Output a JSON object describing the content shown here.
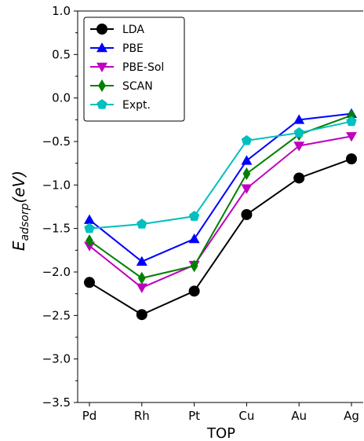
{
  "chart_data": {
    "type": "line",
    "categories": [
      "Pd",
      "Rh",
      "Pt",
      "Cu",
      "Au",
      "Ag"
    ],
    "xlabel": "TOP",
    "ylabel_main": "E",
    "ylabel_sub": "adsorp",
    "ylabel_unit": "(eV)",
    "ylim": [
      -3.5,
      1.0
    ],
    "yticks": [
      1.0,
      0.5,
      0.0,
      -0.5,
      -1.0,
      -1.5,
      -2.0,
      -2.5,
      -3.0,
      -3.5
    ],
    "ytick_labels": [
      "1.0",
      "0.5",
      "0.0",
      "−0.5",
      "−1.0",
      "−1.5",
      "−2.0",
      "−2.5",
      "−3.0",
      "−3.5"
    ],
    "grid": false,
    "legend_position": "top-left",
    "series": [
      {
        "name": "LDA",
        "color": "#000000",
        "marker": "circle",
        "values": [
          -2.12,
          -2.49,
          -2.22,
          -1.34,
          -0.92,
          -0.7
        ]
      },
      {
        "name": "PBE",
        "color": "#0000ff",
        "marker": "triangle-up",
        "values": [
          -1.4,
          -1.88,
          -1.62,
          -0.72,
          -0.25,
          -0.18
        ]
      },
      {
        "name": "PBE-Sol",
        "color": "#bf00bf",
        "marker": "triangle-down",
        "values": [
          -1.7,
          -2.18,
          -1.92,
          -1.04,
          -0.55,
          -0.44
        ]
      },
      {
        "name": "SCAN",
        "color": "#008000",
        "marker": "diamond",
        "values": [
          -1.64,
          -2.07,
          -1.93,
          -0.87,
          -0.42,
          -0.2
        ]
      },
      {
        "name": "Expt.",
        "color": "#00bfbf",
        "marker": "pentagon",
        "values": [
          -1.5,
          -1.45,
          -1.36,
          -0.49,
          -0.4,
          -0.27
        ]
      }
    ]
  }
}
